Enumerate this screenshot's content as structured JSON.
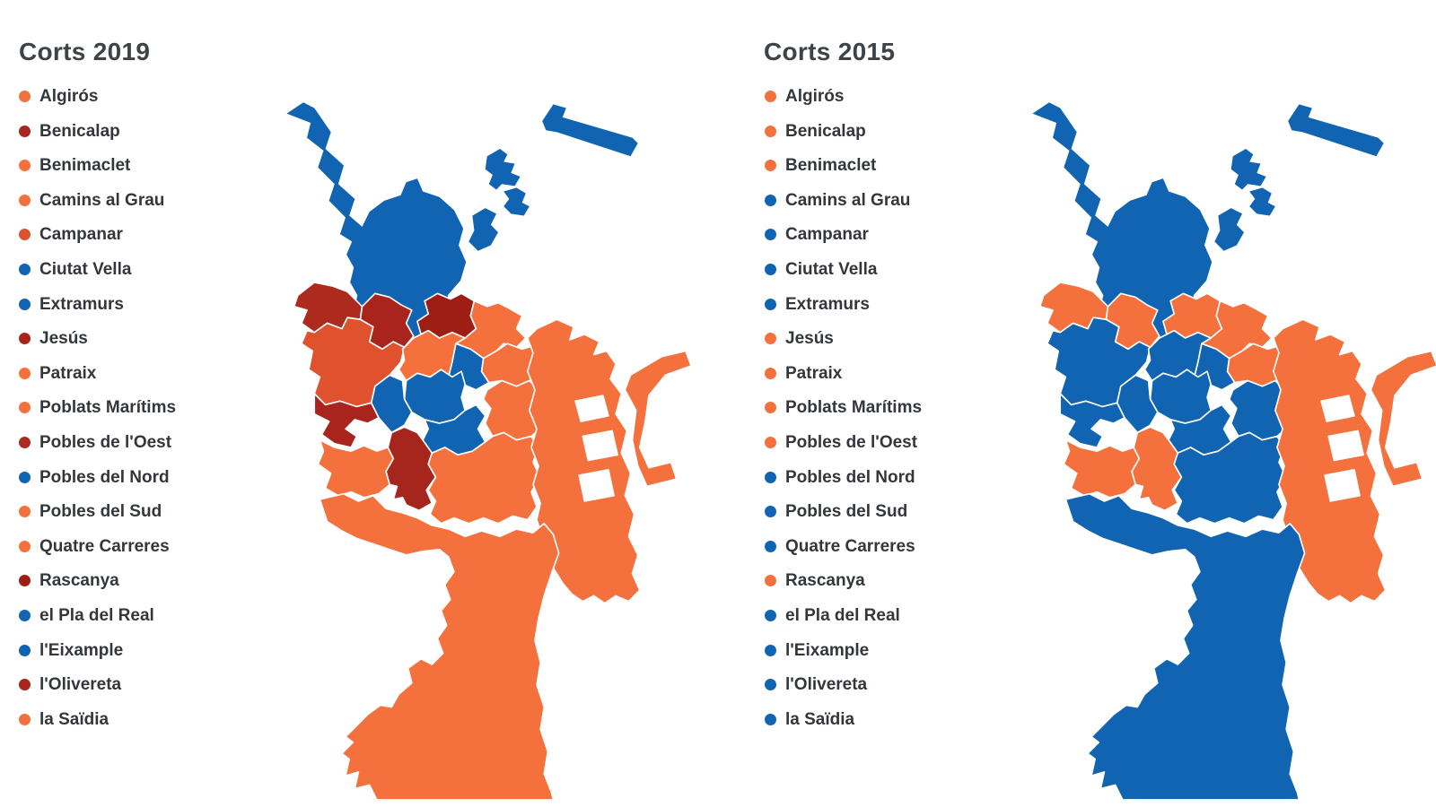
{
  "panels": [
    {
      "id": "corts-2019",
      "year": "2019",
      "title": "Corts 2019"
    },
    {
      "id": "corts-2015",
      "year": "2015",
      "title": "Corts 2015"
    }
  ],
  "colors": {
    "orange": "#F4713D",
    "blue": "#1164B1",
    "dark_red": "#A8241C",
    "red_orange": "#E0512D",
    "title_text": "#3E4347",
    "label_text": "#33373B",
    "border": "#FFFFFF"
  },
  "districts": [
    {
      "id": "algiros",
      "label": "Algirós",
      "c2019": "#F4713D",
      "c2015": "#F4713D"
    },
    {
      "id": "benicalap",
      "label": "Benicalap",
      "c2019": "#A8241C",
      "c2015": "#F4713D"
    },
    {
      "id": "benimaclet",
      "label": "Benimaclet",
      "c2019": "#F4713D",
      "c2015": "#F4713D"
    },
    {
      "id": "camins-al-grau",
      "label": "Camins al Grau",
      "c2019": "#F4713D",
      "c2015": "#1164B1"
    },
    {
      "id": "campanar",
      "label": "Campanar",
      "c2019": "#E0512D",
      "c2015": "#1164B1"
    },
    {
      "id": "ciutat-vella",
      "label": "Ciutat Vella",
      "c2019": "#1164B1",
      "c2015": "#1164B1"
    },
    {
      "id": "extramurs",
      "label": "Extramurs",
      "c2019": "#1164B1",
      "c2015": "#1164B1"
    },
    {
      "id": "jesus",
      "label": "Jesús",
      "c2019": "#A6251C",
      "c2015": "#F4713D"
    },
    {
      "id": "patraix",
      "label": "Patraix",
      "c2019": "#F4713D",
      "c2015": "#F4713D"
    },
    {
      "id": "poblats-maritims",
      "label": "Poblats Marítims",
      "c2019": "#F4713D",
      "c2015": "#F4713D"
    },
    {
      "id": "pobles-de-l-oest",
      "label": "Pobles de l'Oest",
      "c2019": "#AD2A1E",
      "c2015": "#F4713D"
    },
    {
      "id": "pobles-del-nord",
      "label": "Pobles del Nord",
      "c2019": "#1164B1",
      "c2015": "#1164B1"
    },
    {
      "id": "pobles-del-sud",
      "label": "Pobles del Sud",
      "c2019": "#F4713D",
      "c2015": "#1164B1"
    },
    {
      "id": "quatre-carreres",
      "label": "Quatre Carreres",
      "c2019": "#F4713D",
      "c2015": "#1164B1"
    },
    {
      "id": "rascanya",
      "label": "Rascanya",
      "c2019": "#9E1E15",
      "c2015": "#F4713D"
    },
    {
      "id": "el-pla-del-real",
      "label": "el Pla del Real",
      "c2019": "#1164B1",
      "c2015": "#1164B1"
    },
    {
      "id": "l-eixample",
      "label": "l'Eixample",
      "c2019": "#1164B1",
      "c2015": "#1164B1"
    },
    {
      "id": "l-olivereta",
      "label": "l'Olivereta",
      "c2019": "#A8241C",
      "c2015": "#1164B1"
    },
    {
      "id": "la-saidia",
      "label": "la Saïdia",
      "c2019": "#F4713D",
      "c2015": "#1164B1"
    }
  ],
  "chart_data": {
    "type": "choropleth",
    "categories": [
      "Algirós",
      "Benicalap",
      "Benimaclet",
      "Camins al Grau",
      "Campanar",
      "Ciutat Vella",
      "Extramurs",
      "Jesús",
      "Patraix",
      "Poblats Marítims",
      "Pobles de l'Oest",
      "Pobles del Nord",
      "Pobles del Sud",
      "Quatre Carreres",
      "Rascanya",
      "el Pla del Real",
      "l'Eixample",
      "l'Olivereta",
      "la Saïdia"
    ],
    "series": [
      {
        "name": "Corts 2019",
        "values": {
          "Algirós": "orange",
          "Benicalap": "dark-red",
          "Benimaclet": "orange",
          "Camins al Grau": "orange",
          "Campanar": "red-orange",
          "Ciutat Vella": "blue",
          "Extramurs": "blue",
          "Jesús": "dark-red",
          "Patraix": "orange",
          "Poblats Marítims": "orange",
          "Pobles de l'Oest": "dark-red",
          "Pobles del Nord": "blue",
          "Pobles del Sud": "orange",
          "Quatre Carreres": "orange",
          "Rascanya": "dark-red",
          "el Pla del Real": "blue",
          "l'Eixample": "blue",
          "l'Olivereta": "dark-red",
          "la Saïdia": "orange"
        }
      },
      {
        "name": "Corts 2015",
        "values": {
          "Algirós": "orange",
          "Benicalap": "orange",
          "Benimaclet": "orange",
          "Camins al Grau": "blue",
          "Campanar": "blue",
          "Ciutat Vella": "blue",
          "Extramurs": "blue",
          "Jesús": "orange",
          "Patraix": "orange",
          "Poblats Marítims": "orange",
          "Pobles de l'Oest": "orange",
          "Pobles del Nord": "blue",
          "Pobles del Sud": "blue",
          "Quatre Carreres": "blue",
          "Rascanya": "orange",
          "el Pla del Real": "blue",
          "l'Eixample": "blue",
          "l'Olivereta": "blue",
          "la Saïdia": "blue"
        }
      }
    ],
    "legend_position": "left",
    "color_meaning": {
      "orange": "#F4713D",
      "blue": "#1164B1",
      "dark-red": "#A8241C",
      "red-orange": "#E0512D"
    }
  }
}
